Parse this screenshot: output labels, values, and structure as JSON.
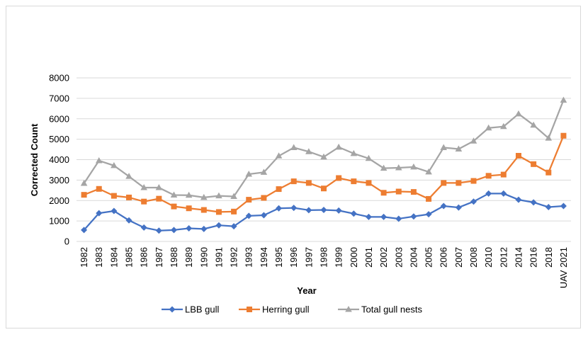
{
  "chart_data": {
    "type": "line",
    "title": "",
    "xlabel": "Year",
    "ylabel": "Corrected Count",
    "ylim": [
      0,
      8000
    ],
    "yticks": [
      0,
      1000,
      2000,
      3000,
      4000,
      5000,
      6000,
      7000,
      8000
    ],
    "ytick_labels": [
      "0",
      "1000",
      "2000",
      "3000",
      "4000",
      "5000",
      "6000",
      "7000",
      "8000"
    ],
    "grid": true,
    "legend_position": "bottom",
    "categories": [
      "1982",
      "1983",
      "1984",
      "1985",
      "1986",
      "1987",
      "1988",
      "1989",
      "1990",
      "1991",
      "1992",
      "1993",
      "1994",
      "1995",
      "1996",
      "1997",
      "1998",
      "1999",
      "2000",
      "2001",
      "2002",
      "2003",
      "2004",
      "2005",
      "2006",
      "2007",
      "2008",
      "2010",
      "2012",
      "2014",
      "2016",
      "2018",
      "UAV 2021"
    ],
    "series": [
      {
        "name": "LBB gull",
        "color": "#4472C4",
        "marker": "diamond",
        "values": [
          560,
          1380,
          1490,
          1030,
          680,
          530,
          560,
          640,
          610,
          790,
          740,
          1250,
          1280,
          1620,
          1640,
          1530,
          1540,
          1510,
          1360,
          1200,
          1200,
          1110,
          1220,
          1330,
          1730,
          1660,
          1950,
          2340,
          2340,
          2040,
          1910,
          1680,
          1730
        ]
      },
      {
        "name": "Herring gull",
        "color": "#ED7D31",
        "marker": "square",
        "values": [
          2280,
          2570,
          2230,
          2150,
          1950,
          2090,
          1710,
          1620,
          1540,
          1440,
          1460,
          2040,
          2130,
          2560,
          2940,
          2860,
          2590,
          3100,
          2940,
          2860,
          2380,
          2440,
          2420,
          2080,
          2860,
          2860,
          2960,
          3210,
          3270,
          4190,
          3780,
          3370,
          5170
        ]
      },
      {
        "name": "Total gull nests",
        "color": "#A5A5A5",
        "marker": "triangle",
        "values": [
          2840,
          3950,
          3710,
          3180,
          2630,
          2630,
          2270,
          2260,
          2150,
          2230,
          2200,
          3290,
          3380,
          4180,
          4590,
          4390,
          4130,
          4610,
          4300,
          4060,
          3580,
          3600,
          3640,
          3400,
          4590,
          4520,
          4910,
          5550,
          5620,
          6240,
          5690,
          5050,
          6910
        ]
      }
    ]
  }
}
